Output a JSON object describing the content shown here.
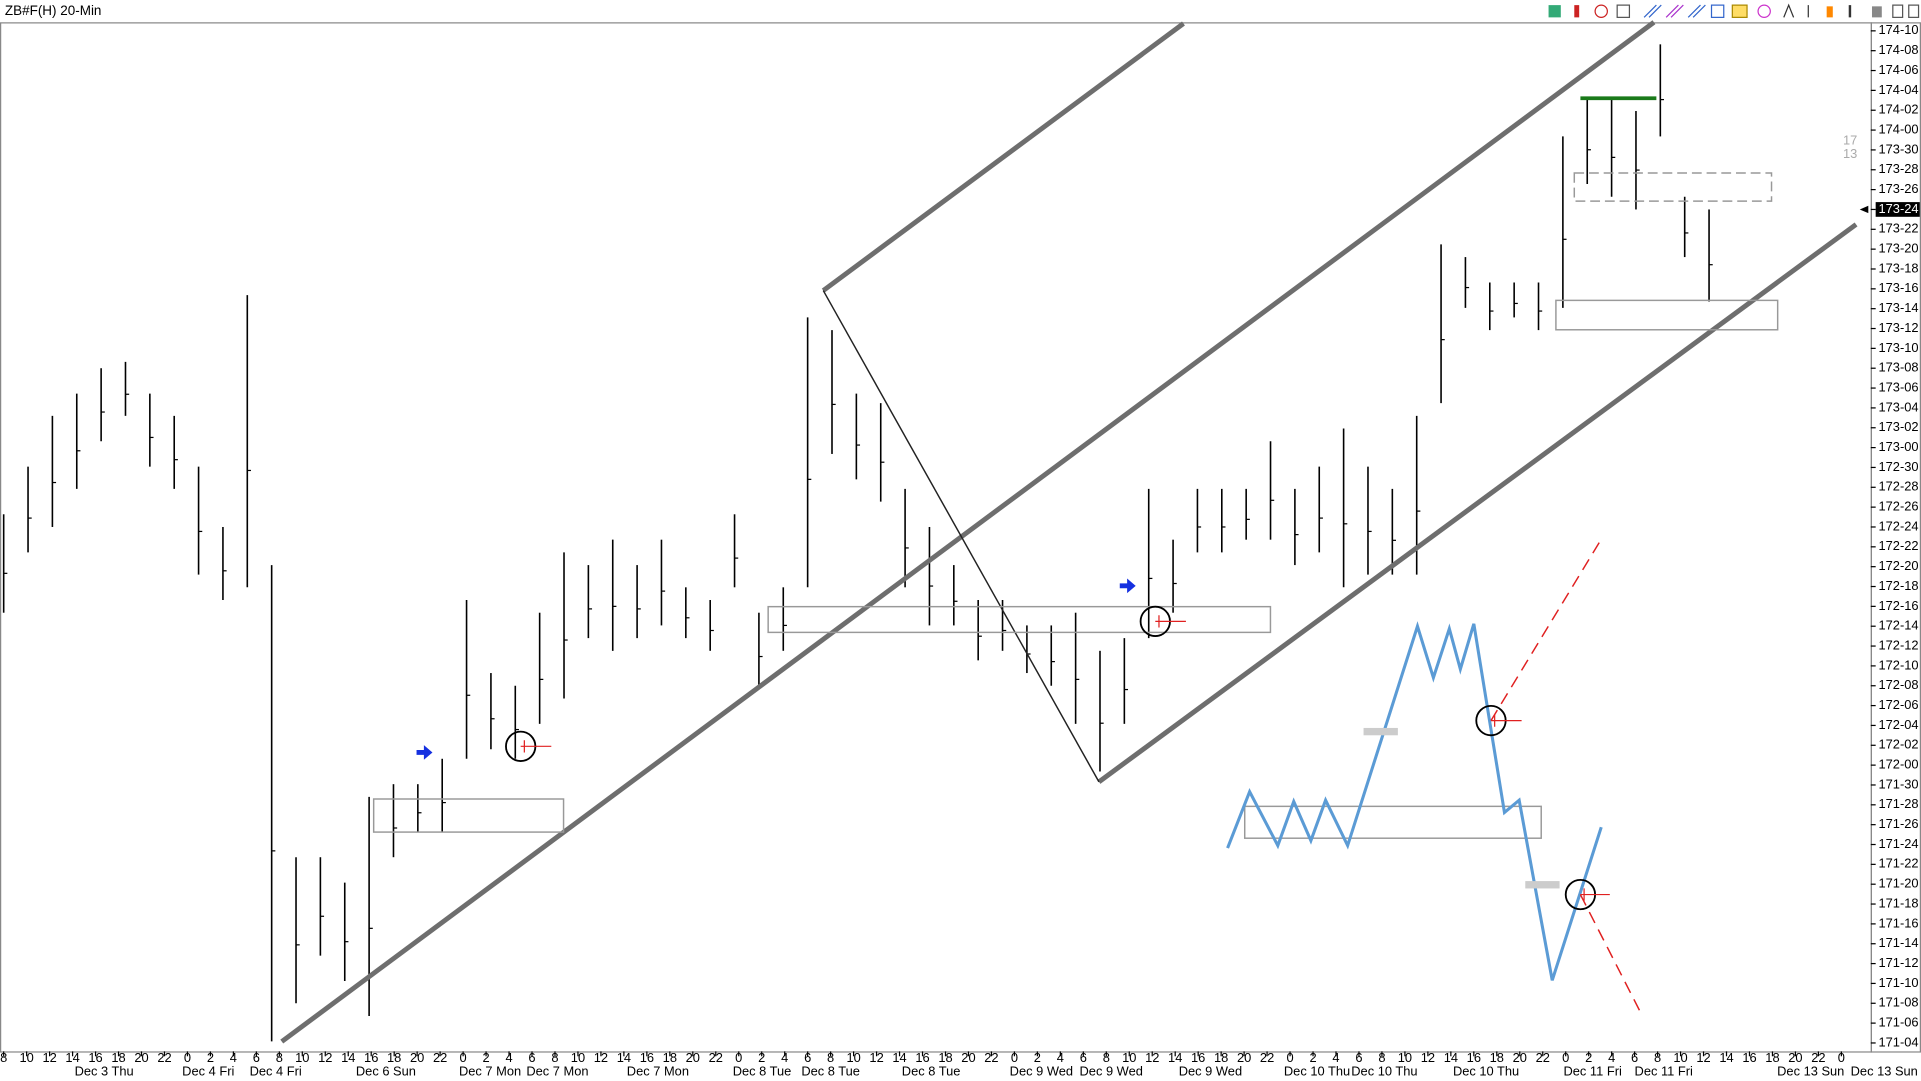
{
  "chart_data": {
    "type": "ohlc",
    "title": "ZB#F(H) 20-Min",
    "color": "#000000",
    "high": [
      172.79,
      172.94,
      173.1,
      173.17,
      173.25,
      173.27,
      173.17,
      173.1,
      172.94,
      172.75,
      173.48,
      172.63,
      171.71,
      171.71,
      171.63,
      171.9,
      171.94,
      171.94,
      172.02,
      172.52,
      172.29,
      172.25,
      172.48,
      172.67,
      172.63,
      172.71,
      172.63,
      172.71,
      172.56,
      172.52,
      172.79,
      172.48,
      172.56,
      173.41,
      173.37,
      173.17,
      173.14,
      172.87,
      172.75,
      172.63,
      172.52,
      172.52,
      172.44,
      172.44,
      172.48,
      172.36,
      172.4,
      172.87,
      172.71,
      172.87,
      172.87,
      172.87,
      173.02,
      172.87,
      172.94,
      173.06,
      172.94,
      172.87,
      173.1,
      173.64,
      173.6,
      173.52,
      173.52,
      173.52,
      173.98,
      174.1,
      174.1,
      174.06,
      174.27,
      173.79,
      173.75
    ],
    "low": [
      172.48,
      172.67,
      172.75,
      172.87,
      173.02,
      173.1,
      172.94,
      172.87,
      172.6,
      172.52,
      172.56,
      171.13,
      171.25,
      171.4,
      171.32,
      171.21,
      171.71,
      171.79,
      171.79,
      172.02,
      172.05,
      172.02,
      172.13,
      172.21,
      172.4,
      172.36,
      172.4,
      172.44,
      172.4,
      172.36,
      172.56,
      172.25,
      172.36,
      172.56,
      172.98,
      172.9,
      172.83,
      172.56,
      172.44,
      172.44,
      172.33,
      172.36,
      172.29,
      172.25,
      172.13,
      171.98,
      172.13,
      172.4,
      172.48,
      172.67,
      172.67,
      172.71,
      172.71,
      172.63,
      172.67,
      172.56,
      172.6,
      172.6,
      172.6,
      173.14,
      173.44,
      173.37,
      173.41,
      173.37,
      173.44,
      173.83,
      173.79,
      173.75,
      173.98,
      173.6,
      173.46
    ],
    "ylim": [
      171.0985,
      174.3395
    ],
    "yticks": [
      {
        "value": 171.125,
        "label": "171-04"
      },
      {
        "value": 171.1875,
        "label": "171-06"
      },
      {
        "value": 171.25,
        "label": "171-08"
      },
      {
        "value": 171.3125,
        "label": "171-10"
      },
      {
        "value": 171.375,
        "label": "171-12"
      },
      {
        "value": 171.4375,
        "label": "171-14"
      },
      {
        "value": 171.5,
        "label": "171-16"
      },
      {
        "value": 171.5625,
        "label": "171-18"
      },
      {
        "value": 171.625,
        "label": "171-20"
      },
      {
        "value": 171.6875,
        "label": "171-22"
      },
      {
        "value": 171.75,
        "label": "171-24"
      },
      {
        "value": 171.8125,
        "label": "171-26"
      },
      {
        "value": 171.875,
        "label": "171-28"
      },
      {
        "value": 171.9375,
        "label": "171-30"
      },
      {
        "value": 172,
        "label": "172-00"
      },
      {
        "value": 172.0625,
        "label": "172-02"
      },
      {
        "value": 172.125,
        "label": "172-04"
      },
      {
        "value": 172.1875,
        "label": "172-06"
      },
      {
        "value": 172.25,
        "label": "172-08"
      },
      {
        "value": 172.3125,
        "label": "172-10"
      },
      {
        "value": 172.375,
        "label": "172-12"
      },
      {
        "value": 172.4375,
        "label": "172-14"
      },
      {
        "value": 172.5,
        "label": "172-16"
      },
      {
        "value": 172.5625,
        "label": "172-18"
      },
      {
        "value": 172.625,
        "label": "172-20"
      },
      {
        "value": 172.6875,
        "label": "172-22"
      },
      {
        "value": 172.75,
        "label": "172-24"
      },
      {
        "value": 172.8125,
        "label": "172-26"
      },
      {
        "value": 172.875,
        "label": "172-28"
      },
      {
        "value": 172.9375,
        "label": "172-30"
      },
      {
        "value": 173,
        "label": "173-00"
      },
      {
        "value": 173.0625,
        "label": "173-02"
      },
      {
        "value": 173.125,
        "label": "173-04"
      },
      {
        "value": 173.1875,
        "label": "173-06"
      },
      {
        "value": 173.25,
        "label": "173-08"
      },
      {
        "value": 173.3125,
        "label": "173-10"
      },
      {
        "value": 173.375,
        "label": "173-12"
      },
      {
        "value": 173.4375,
        "label": "173-14"
      },
      {
        "value": 173.5,
        "label": "173-16"
      },
      {
        "value": 173.5625,
        "label": "173-18"
      },
      {
        "value": 173.625,
        "label": "173-20"
      },
      {
        "value": 173.6875,
        "label": "173-22"
      },
      {
        "value": 173.75,
        "label": "173-24"
      },
      {
        "value": 173.8125,
        "label": "173-26"
      },
      {
        "value": 173.875,
        "label": "173-28"
      },
      {
        "value": 173.9375,
        "label": "173-30"
      },
      {
        "value": 174,
        "label": "174-00"
      },
      {
        "value": 174.0625,
        "label": "174-02"
      },
      {
        "value": 174.125,
        "label": "174-04"
      },
      {
        "value": 174.1875,
        "label": "174-06"
      },
      {
        "value": 174.25,
        "label": "174-08"
      },
      {
        "value": 174.3125,
        "label": "174-10"
      }
    ],
    "last_price": {
      "value": 173.75,
      "label": "173-24"
    },
    "side_labels": [
      "17",
      "13"
    ],
    "hour_labels": [
      "8",
      "10",
      "12",
      "14",
      "16",
      "18",
      "20",
      "22",
      "0",
      "2",
      "4",
      "6",
      "8",
      "10",
      "12",
      "14",
      "16",
      "18",
      "20",
      "22",
      "0",
      "2",
      "4",
      "6",
      "8",
      "10",
      "12",
      "14",
      "16",
      "18",
      "20",
      "22",
      "0",
      "2",
      "4",
      "6",
      "8",
      "10",
      "12",
      "14",
      "16",
      "18",
      "20",
      "22",
      "0",
      "2",
      "4",
      "6",
      "8",
      "10",
      "12",
      "14",
      "16",
      "18",
      "20",
      "22",
      "0",
      "2",
      "4",
      "6",
      "8",
      "10",
      "12",
      "14",
      "16",
      "18",
      "20",
      "22",
      "0",
      "2",
      "4",
      "6",
      "8",
      "10",
      "12",
      "14",
      "16",
      "18",
      "20",
      "22",
      "0"
    ],
    "date_labels": [
      "Dec 3 Thu",
      "Dec 4 Fri",
      "Dec 4 Fri",
      "Dec 6 Sun",
      "Dec 7 Mon",
      "Dec 7 Mon",
      "Dec 7 Mon",
      "Dec 8 Tue",
      "Dec 8 Tue",
      "Dec 8 Tue",
      "Dec 9 Wed",
      "Dec 9 Wed",
      "Dec 9 Wed",
      "Dec 10 Thu",
      "Dec 10 Thu",
      "Dec 10 Thu",
      "Dec 11 Fri",
      "Dec 11 Fri",
      "Dec 13 Sun",
      "Dec 13 Sun"
    ]
  }
}
